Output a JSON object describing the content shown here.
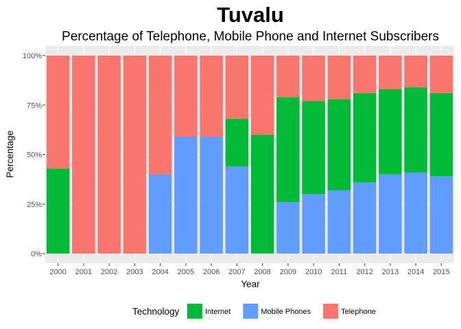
{
  "chart_data": {
    "type": "bar",
    "stacked": true,
    "title": "Tuvalu",
    "subtitle": "Percentage of Telephone, Mobile Phone and Internet Subscribers",
    "xlabel": "Year",
    "ylabel": "Percentage",
    "ylim": [
      0,
      100
    ],
    "y_ticks": [
      "0%",
      "25%",
      "50%",
      "75%",
      "100%"
    ],
    "y_tick_values": [
      0,
      25,
      50,
      75,
      100
    ],
    "grid": true,
    "legend_position": "bottom",
    "legend_title": "Technology",
    "categories": [
      "2000",
      "2001",
      "2002",
      "2003",
      "2004",
      "2005",
      "2006",
      "2007",
      "2008",
      "2009",
      "2010",
      "2011",
      "2012",
      "2013",
      "2014",
      "2015"
    ],
    "series": [
      {
        "name": "Mobile Phones",
        "color": "#619CFF",
        "values": [
          0,
          0,
          0,
          0,
          40,
          59,
          59,
          44,
          0,
          26,
          30,
          32,
          36,
          40,
          41,
          39
        ]
      },
      {
        "name": "Internet",
        "color": "#00BA38",
        "values": [
          43,
          0,
          0,
          0,
          0,
          0,
          0,
          24,
          60,
          53,
          47,
          46,
          45,
          43,
          43,
          42
        ]
      },
      {
        "name": "Telephone",
        "color": "#F8766D",
        "values": [
          57,
          100,
          100,
          100,
          60,
          41,
          41,
          32,
          40,
          21,
          23,
          22,
          19,
          17,
          16,
          19
        ]
      }
    ],
    "legend_order": [
      "Internet",
      "Mobile Phones",
      "Telephone"
    ]
  },
  "colors": {
    "panel_background": "#EBEBEB",
    "grid_major": "#FFFFFF",
    "grid_minor": "#F5F5F5"
  }
}
